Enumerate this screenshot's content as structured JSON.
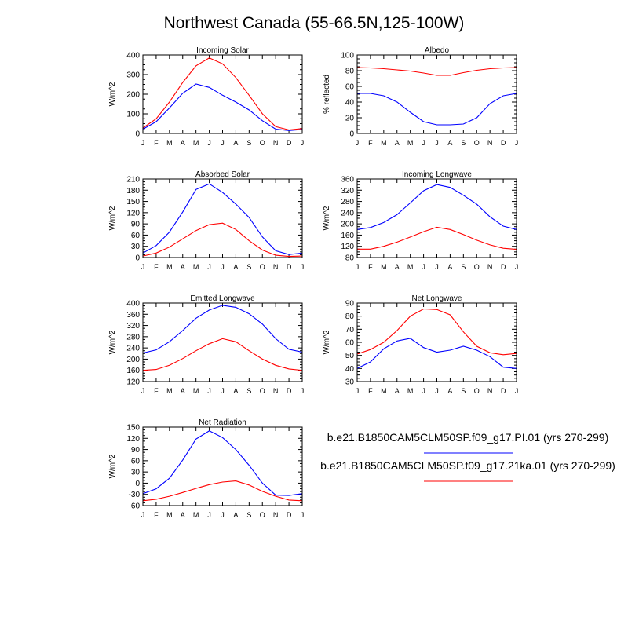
{
  "page_title": "Northwest Canada (55-66.5N,125-100W)",
  "months": [
    "J",
    "F",
    "M",
    "A",
    "M",
    "J",
    "J",
    "A",
    "S",
    "O",
    "N",
    "D",
    "J"
  ],
  "legend": [
    {
      "name": "b.e21.B1850CAM5CLM50SP.f09_g17.PI.01 (yrs 270-299)",
      "color": "#0000ff"
    },
    {
      "name": "b.e21.B1850CAM5CLM50SP.f09_g17.21ka.01 (yrs 270-299)",
      "color": "#ff0000"
    }
  ],
  "chart_data": [
    {
      "type": "line",
      "title": "Incoming Solar",
      "ylabel": "W/m^2",
      "ylim": [
        0,
        400
      ],
      "yticks": [
        0,
        100,
        200,
        300,
        400
      ],
      "series": [
        {
          "name": "b.e21.B1850CAM5CLM50SP.f09_g17.PI.01 (yrs 270-299)",
          "color": "#0000ff",
          "values": [
            22,
            60,
            130,
            205,
            252,
            235,
            195,
            160,
            120,
            65,
            22,
            15,
            20
          ]
        },
        {
          "name": "b.e21.B1850CAM5CLM50SP.f09_g17.21ka.01 (yrs 270-299)",
          "color": "#ff0000",
          "values": [
            28,
            75,
            160,
            260,
            345,
            385,
            355,
            285,
            195,
            100,
            35,
            18,
            25
          ]
        }
      ]
    },
    {
      "type": "line",
      "title": "Albedo",
      "ylabel": "% reflected",
      "ylim": [
        0,
        100
      ],
      "yticks": [
        0,
        20,
        40,
        60,
        80,
        100
      ],
      "series": [
        {
          "name": "b.e21.B1850CAM5CLM50SP.f09_g17.PI.01 (yrs 270-299)",
          "color": "#0000ff",
          "values": [
            51,
            51,
            48,
            40,
            27,
            15,
            11,
            11,
            12,
            20,
            38,
            48,
            51
          ]
        },
        {
          "name": "b.e21.B1850CAM5CLM50SP.f09_g17.21ka.01 (yrs 270-299)",
          "color": "#ff0000",
          "values": [
            84,
            83.5,
            82.5,
            81,
            79.5,
            77,
            74,
            74,
            77.5,
            80.5,
            82.5,
            83.5,
            84
          ]
        }
      ]
    },
    {
      "type": "line",
      "title": "Absorbed Solar",
      "ylabel": "W/m^2",
      "ylim": [
        0,
        210
      ],
      "yticks": [
        0,
        30,
        60,
        90,
        120,
        150,
        180,
        210
      ],
      "series": [
        {
          "name": "b.e21.B1850CAM5CLM50SP.f09_g17.PI.01 (yrs 270-299)",
          "color": "#0000ff",
          "values": [
            12,
            32,
            68,
            122,
            182,
            197,
            174,
            143,
            107,
            55,
            18,
            8,
            12
          ]
        },
        {
          "name": "b.e21.B1850CAM5CLM50SP.f09_g17.21ka.01 (yrs 270-299)",
          "color": "#ff0000",
          "values": [
            4,
            12,
            28,
            50,
            72,
            88,
            92,
            75,
            45,
            20,
            6,
            3,
            4
          ]
        }
      ]
    },
    {
      "type": "line",
      "title": "Incoming Longwave",
      "ylabel": "W/m^2",
      "ylim": [
        80,
        360
      ],
      "yticks": [
        80,
        120,
        160,
        200,
        240,
        280,
        320,
        360
      ],
      "series": [
        {
          "name": "b.e21.B1850CAM5CLM50SP.f09_g17.PI.01 (yrs 270-299)",
          "color": "#0000ff",
          "values": [
            180,
            187,
            205,
            233,
            275,
            318,
            340,
            330,
            302,
            270,
            225,
            192,
            180
          ]
        },
        {
          "name": "b.e21.B1850CAM5CLM50SP.f09_g17.21ka.01 (yrs 270-299)",
          "color": "#ff0000",
          "values": [
            110,
            110,
            120,
            135,
            153,
            172,
            188,
            180,
            162,
            142,
            125,
            113,
            109
          ]
        }
      ]
    },
    {
      "type": "line",
      "title": "Emitted Longwave",
      "ylabel": "W/m^2",
      "ylim": [
        120,
        400
      ],
      "yticks": [
        120,
        160,
        200,
        240,
        280,
        320,
        360,
        400
      ],
      "series": [
        {
          "name": "b.e21.B1850CAM5CLM50SP.f09_g17.PI.01 (yrs 270-299)",
          "color": "#0000ff",
          "values": [
            222,
            233,
            262,
            302,
            346,
            375,
            392,
            385,
            362,
            325,
            273,
            235,
            225
          ]
        },
        {
          "name": "b.e21.B1850CAM5CLM50SP.f09_g17.21ka.01 (yrs 270-299)",
          "color": "#ff0000",
          "values": [
            160,
            163,
            178,
            202,
            230,
            255,
            273,
            262,
            230,
            200,
            178,
            165,
            160
          ]
        }
      ]
    },
    {
      "type": "line",
      "title": "Net Longwave",
      "ylabel": "W/m^2",
      "ylim": [
        30,
        90
      ],
      "yticks": [
        30,
        40,
        50,
        60,
        70,
        80,
        90
      ],
      "series": [
        {
          "name": "b.e21.B1850CAM5CLM50SP.f09_g17.PI.01 (yrs 270-299)",
          "color": "#0000ff",
          "values": [
            40,
            45,
            55,
            61,
            63,
            56,
            52.5,
            54,
            57,
            54,
            49,
            41,
            40
          ]
        },
        {
          "name": "b.e21.B1850CAM5CLM50SP.f09_g17.21ka.01 (yrs 270-299)",
          "color": "#ff0000",
          "values": [
            51,
            54.5,
            60,
            69,
            80,
            85.5,
            85,
            81,
            68,
            57,
            52,
            50.5,
            51.5
          ]
        }
      ]
    },
    {
      "type": "line",
      "title": "Net Radiation",
      "ylabel": "W/m^2",
      "ylim": [
        -60,
        150
      ],
      "yticks": [
        -60,
        -30,
        0,
        30,
        60,
        90,
        120,
        150
      ],
      "series": [
        {
          "name": "b.e21.B1850CAM5CLM50SP.f09_g17.PI.01 (yrs 270-299)",
          "color": "#0000ff",
          "values": [
            -28,
            -15,
            13,
            62,
            118,
            140,
            122,
            90,
            48,
            0,
            -32,
            -33,
            -28
          ]
        },
        {
          "name": "b.e21.B1850CAM5CLM50SP.f09_g17.21ka.01 (yrs 270-299)",
          "color": "#ff0000",
          "values": [
            -47,
            -43,
            -35,
            -25,
            -14,
            -4,
            3,
            6,
            -5,
            -22,
            -35,
            -45,
            -47
          ]
        }
      ]
    }
  ]
}
